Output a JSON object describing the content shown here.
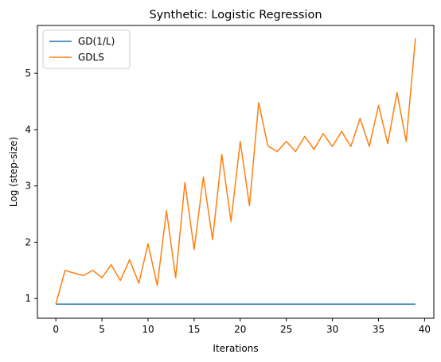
{
  "chart_data": {
    "type": "line",
    "title": "Synthetic: Logistic Regression",
    "xlabel": "Iterations",
    "ylabel": "Log (step-size)",
    "xlim": [
      -2,
      41
    ],
    "ylim": [
      0.65,
      5.85
    ],
    "xticks": [
      0,
      5,
      10,
      15,
      20,
      25,
      30,
      35,
      40
    ],
    "yticks": [
      1,
      2,
      3,
      4,
      5
    ],
    "grid": false,
    "legend_position": "upper-left",
    "x": [
      0,
      1,
      2,
      3,
      4,
      5,
      6,
      7,
      8,
      9,
      10,
      11,
      12,
      13,
      14,
      15,
      16,
      17,
      18,
      19,
      20,
      21,
      22,
      23,
      24,
      25,
      26,
      27,
      28,
      29,
      30,
      31,
      32,
      33,
      34,
      35,
      36,
      37,
      38,
      39
    ],
    "series": [
      {
        "name": "GD(1/L)",
        "color": "#1f77b4",
        "values": [
          0.9,
          0.9,
          0.9,
          0.9,
          0.9,
          0.9,
          0.9,
          0.9,
          0.9,
          0.9,
          0.9,
          0.9,
          0.9,
          0.9,
          0.9,
          0.9,
          0.9,
          0.9,
          0.9,
          0.9,
          0.9,
          0.9,
          0.9,
          0.9,
          0.9,
          0.9,
          0.9,
          0.9,
          0.9,
          0.9,
          0.9,
          0.9,
          0.9,
          0.9,
          0.9,
          0.9,
          0.9,
          0.9,
          0.9,
          0.9
        ]
      },
      {
        "name": "GDLS",
        "color": "#ff7f0e",
        "values": [
          0.9,
          1.5,
          1.45,
          1.41,
          1.5,
          1.37,
          1.6,
          1.32,
          1.69,
          1.27,
          1.97,
          1.23,
          2.56,
          1.37,
          3.06,
          1.87,
          3.16,
          2.05,
          3.56,
          2.37,
          3.79,
          2.65,
          4.48,
          3.71,
          3.61,
          3.79,
          3.61,
          3.88,
          3.65,
          3.93,
          3.7,
          3.97,
          3.7,
          4.2,
          3.7,
          4.43,
          3.75,
          4.66,
          3.79,
          5.62
        ]
      }
    ]
  }
}
